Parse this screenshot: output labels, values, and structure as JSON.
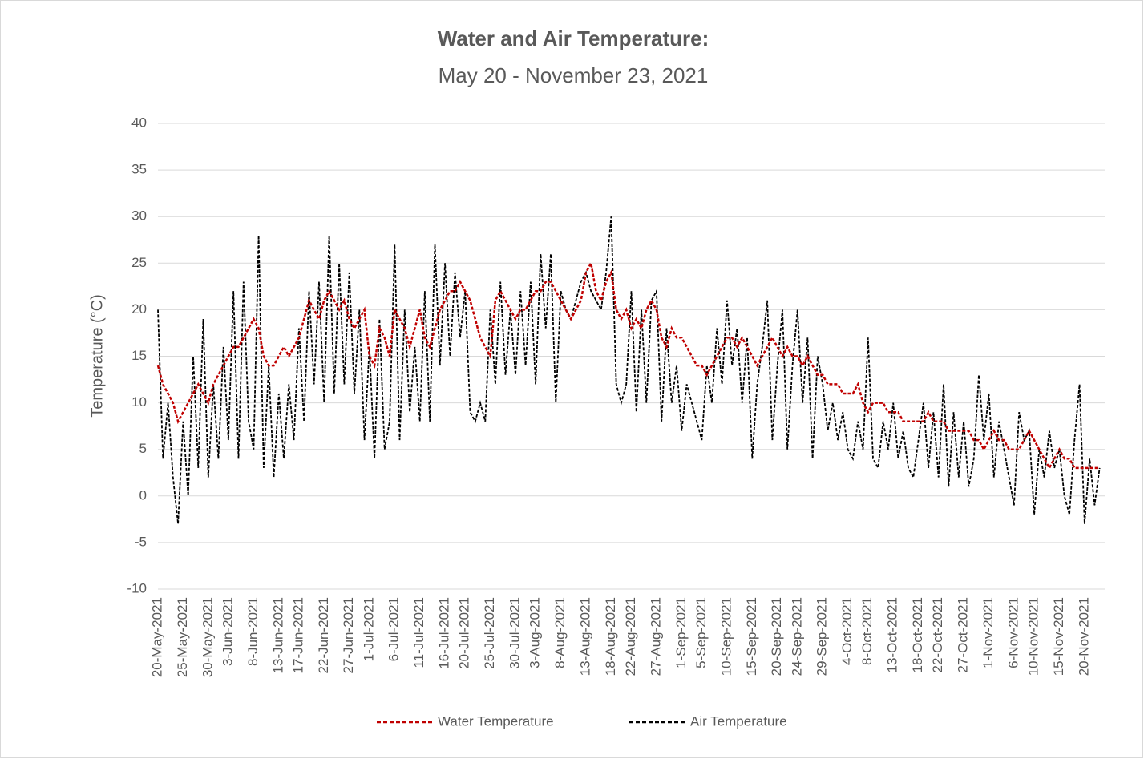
{
  "chart_data": {
    "type": "line",
    "title": "Water and Air Temperature:",
    "subtitle": "May 20 - November 23, 2021",
    "y_label": "Temperature (°C)",
    "ylim": [
      -10,
      40
    ],
    "yticks": [
      -10,
      -5,
      0,
      5,
      10,
      15,
      20,
      25,
      30,
      35,
      40
    ],
    "grid": true,
    "legend": "bottom",
    "categories": [
      "20-May-2021",
      null,
      null,
      null,
      null,
      "25-May-2021",
      null,
      null,
      null,
      null,
      "30-May-2021",
      null,
      null,
      null,
      "3-Jun-2021",
      null,
      null,
      null,
      null,
      "8-Jun-2021",
      null,
      null,
      null,
      null,
      "13-Jun-2021",
      null,
      null,
      null,
      "17-Jun-2021",
      null,
      null,
      null,
      null,
      "22-Jun-2021",
      null,
      null,
      null,
      null,
      "27-Jun-2021",
      null,
      null,
      null,
      "1-Jul-2021",
      null,
      null,
      null,
      null,
      "6-Jul-2021",
      null,
      null,
      null,
      null,
      "11-Jul-2021",
      null,
      null,
      null,
      null,
      "16-Jul-2021",
      null,
      null,
      null,
      "20-Jul-2021",
      null,
      null,
      null,
      null,
      "25-Jul-2021",
      null,
      null,
      null,
      null,
      "30-Jul-2021",
      null,
      null,
      null,
      "3-Aug-2021",
      null,
      null,
      null,
      null,
      "8-Aug-2021",
      null,
      null,
      null,
      null,
      "13-Aug-2021",
      null,
      null,
      null,
      null,
      "18-Aug-2021",
      null,
      null,
      null,
      "22-Aug-2021",
      null,
      null,
      null,
      null,
      "27-Aug-2021",
      null,
      null,
      null,
      null,
      "1-Sep-2021",
      null,
      null,
      null,
      "5-Sep-2021",
      null,
      null,
      null,
      null,
      "10-Sep-2021",
      null,
      null,
      null,
      null,
      "15-Sep-2021",
      null,
      null,
      null,
      null,
      "20-Sep-2021",
      null,
      null,
      null,
      "24-Sep-2021",
      null,
      null,
      null,
      null,
      "29-Sep-2021",
      null,
      null,
      null,
      null,
      "4-Oct-2021",
      null,
      null,
      null,
      "8-Oct-2021",
      null,
      null,
      null,
      null,
      "13-Oct-2021",
      null,
      null,
      null,
      null,
      "18-Oct-2021",
      null,
      null,
      null,
      "22-Oct-2021",
      null,
      null,
      null,
      null,
      "27-Oct-2021",
      null,
      null,
      null,
      null,
      "1-Nov-2021",
      null,
      null,
      null,
      null,
      "6-Nov-2021",
      null,
      null,
      null,
      "10-Nov-2021",
      null,
      null,
      null,
      null,
      "15-Nov-2021",
      null,
      null,
      null,
      null,
      "20-Nov-2021",
      null,
      null,
      null
    ],
    "series": [
      {
        "name": "Water Temperature",
        "color": "#c00000",
        "values": [
          14,
          12,
          11,
          10,
          8,
          9,
          10,
          11,
          12,
          11,
          10,
          12,
          13,
          14,
          15,
          16,
          16,
          17,
          18,
          19,
          18,
          15,
          14,
          14,
          15,
          16,
          15,
          16,
          17,
          19,
          21,
          20,
          19,
          21,
          22,
          21,
          20,
          21,
          19,
          18,
          19,
          20,
          15,
          14,
          18,
          17,
          15,
          20,
          19,
          18,
          16,
          18,
          20,
          17,
          16,
          18,
          20,
          21,
          22,
          22,
          23,
          22,
          21,
          19,
          17,
          16,
          15,
          21,
          22,
          21,
          20,
          19,
          20,
          20,
          21,
          22,
          22,
          23,
          23,
          22,
          21,
          20,
          19,
          20,
          21,
          24,
          25,
          22,
          21,
          23,
          24,
          20,
          19,
          20,
          18,
          19,
          18,
          20,
          21,
          20,
          17,
          16,
          18,
          17,
          17,
          16,
          15,
          14,
          14,
          13,
          14,
          15,
          16,
          17,
          17,
          16,
          17,
          16,
          15,
          14,
          15,
          16,
          17,
          16,
          15,
          16,
          15,
          15,
          14,
          15,
          14,
          13,
          13,
          12,
          12,
          12,
          11,
          11,
          11,
          12,
          10,
          9,
          10,
          10,
          10,
          9,
          9,
          9,
          8,
          8,
          8,
          8,
          8,
          9,
          8,
          8,
          8,
          7,
          7,
          7,
          7,
          7,
          6,
          6,
          5,
          6,
          7,
          6,
          6,
          5,
          5,
          5,
          6,
          7,
          6,
          5,
          4,
          3,
          4,
          5,
          4,
          4,
          3,
          3,
          3,
          3,
          3,
          3
        ]
      },
      {
        "name": "Air Temperature",
        "color": "#000000",
        "values": [
          20,
          4,
          10,
          2,
          -3,
          8,
          0,
          15,
          3,
          19,
          2,
          12,
          4,
          16,
          6,
          22,
          4,
          23,
          8,
          5,
          28,
          3,
          14,
          2,
          11,
          4,
          12,
          6,
          18,
          8,
          22,
          12,
          23,
          10,
          28,
          11,
          25,
          12,
          24,
          11,
          20,
          6,
          16,
          4,
          19,
          5,
          8,
          27,
          6,
          20,
          9,
          16,
          8,
          22,
          8,
          27,
          14,
          25,
          15,
          24,
          17,
          22,
          9,
          8,
          10,
          8,
          20,
          12,
          23,
          13,
          20,
          13,
          22,
          14,
          23,
          12,
          26,
          18,
          26,
          10,
          22,
          20,
          19,
          21,
          23,
          24,
          22,
          21,
          20,
          24,
          30,
          12,
          10,
          12,
          22,
          9,
          20,
          10,
          21,
          22,
          8,
          18,
          10,
          14,
          7,
          12,
          10,
          8,
          6,
          14,
          10,
          18,
          12,
          21,
          14,
          18,
          10,
          17,
          4,
          12,
          16,
          21,
          6,
          14,
          20,
          5,
          14,
          20,
          10,
          17,
          4,
          15,
          12,
          7,
          10,
          6,
          9,
          5,
          4,
          8,
          5,
          17,
          4,
          3,
          8,
          5,
          10,
          4,
          7,
          3,
          2,
          6,
          10,
          3,
          9,
          2,
          12,
          1,
          9,
          2,
          8,
          1,
          4,
          13,
          6,
          11,
          2,
          8,
          5,
          2,
          -1,
          9,
          6,
          7,
          -2,
          5,
          2,
          7,
          3,
          5,
          0,
          -2,
          6,
          12,
          -3,
          4,
          -1,
          3
        ]
      }
    ]
  }
}
